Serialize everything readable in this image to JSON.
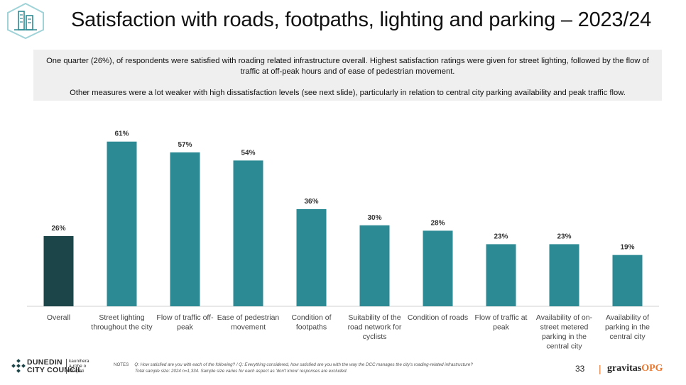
{
  "title": "Satisfaction with roads, footpaths, lighting and parking – 2023/24",
  "summary": {
    "para1": "One quarter (26%), of respondents were satisfied with roading related infrastructure overall. Highest satisfaction ratings were given for street lighting, followed by the flow of traffic at off-peak hours and of ease of pedestrian movement.",
    "para2": "Other measures were a lot weaker with high dissatisfaction levels (see next slide), particularly in relation to central city parking availability and peak traffic flow."
  },
  "chart_data": {
    "type": "bar",
    "title": "",
    "xlabel": "",
    "ylabel": "",
    "ylim": [
      0,
      70
    ],
    "grid": false,
    "categories": [
      "Overall",
      "Street lighting throughout the city",
      "Flow of traffic off-peak",
      "Ease of pedestrian movement",
      "Condition of footpaths",
      "Suitability of the road network for cyclists",
      "Condition of roads",
      "Flow of traffic at peak",
      "Availability of on-street metered parking in the central city",
      "Availability of parking in the central city"
    ],
    "category_lines": [
      [
        "Overall"
      ],
      [
        "Street lighting",
        "throughout the city"
      ],
      [
        "Flow of traffic off-",
        "peak"
      ],
      [
        "Ease of pedestrian",
        "movement"
      ],
      [
        "Condition of",
        "footpaths"
      ],
      [
        "Suitability of the",
        "road network for",
        "cyclists"
      ],
      [
        "Condition of roads"
      ],
      [
        "Flow of traffic at",
        "peak"
      ],
      [
        "Availability of on-",
        "street metered",
        "parking in the",
        "central city"
      ],
      [
        "Availability of",
        "parking in the",
        "central city"
      ]
    ],
    "values": [
      26,
      61,
      57,
      54,
      36,
      30,
      28,
      23,
      23,
      19
    ],
    "labels": [
      "26%",
      "61%",
      "57%",
      "54%",
      "36%",
      "30%",
      "28%",
      "23%",
      "23%",
      "19%"
    ],
    "colors": {
      "highlight": "#1b4548",
      "default": "#2b8a94",
      "axis": "#d0d0d0"
    }
  },
  "footer": {
    "org_line1": "DUNEDIN",
    "org_line2": "CITY COUNCIL",
    "org_maori": [
      "kaunihera",
      "a-rohe o",
      "Ōtepoti"
    ],
    "notes_label": "NOTES",
    "notes_line1": "Q: How satisfied are you with each of the following?  /  Q: Everything considered, how satisfied are you with the way the DCC manages the city's roading-related infrastructure?",
    "notes_line2": "Total sample size: 2024 n=1,334. Sample size varies  for each aspect as 'don't know' responses are excluded.",
    "page_number": "33",
    "separator": "|",
    "brand_main": "gravitas",
    "brand_accent": "OPG"
  }
}
